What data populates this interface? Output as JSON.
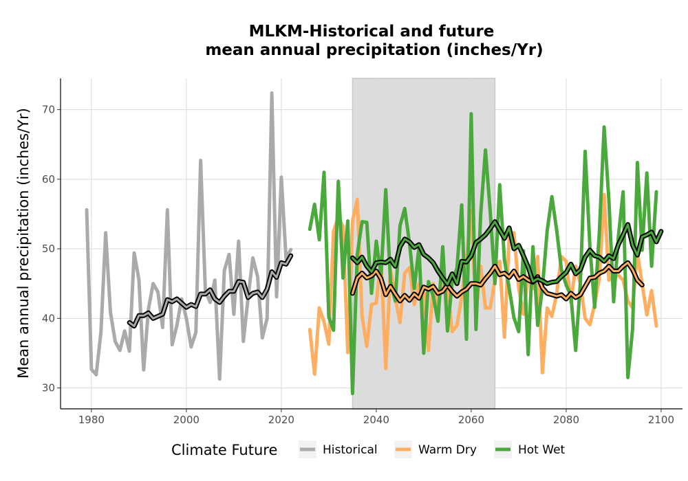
{
  "chart_data": {
    "type": "line",
    "title_lines": [
      "MLKM-Historical and future",
      "mean annual precipitation (inches/Yr)"
    ],
    "ylabel": "Mean annual precipitation (inches/Yr)",
    "xlim": [
      1973.5,
      2104.5
    ],
    "ylim": [
      27,
      74.5
    ],
    "x_ticks": [
      1980,
      2000,
      2020,
      2040,
      2060,
      2080,
      2100
    ],
    "y_ticks": [
      30,
      40,
      50,
      60,
      70
    ],
    "grid": true,
    "shaded_period": [
      2035,
      2065
    ],
    "legend": {
      "title": "Climate Future",
      "placement": "bottom",
      "items": [
        {
          "label": "Historical",
          "color": "#aaaaaa"
        },
        {
          "label": "Warm Dry",
          "color": "#fdae61"
        },
        {
          "label": "Hot Wet",
          "color": "#4aa83c"
        }
      ]
    },
    "series": [
      {
        "name": "Historical",
        "color": "#aaaaaa",
        "x_start": 1979,
        "values": [
          55.6,
          32.7,
          31.9,
          38.0,
          52.3,
          40.9,
          36.7,
          35.4,
          38.2,
          35.3,
          49.4,
          45.6,
          32.6,
          41.3,
          45.0,
          43.8,
          38.7,
          55.6,
          36.2,
          39.0,
          42.8,
          40.0,
          35.9,
          38.0,
          62.7,
          44.0,
          42.3,
          45.5,
          31.3,
          46.9,
          49.2,
          40.6,
          51.1,
          36.7,
          43.0,
          48.7,
          46.0,
          37.2,
          40.0,
          72.4,
          43.1,
          60.3,
          48.6,
          49.9
        ]
      },
      {
        "name": "",
        "color": "#000000",
        "smoothed": true,
        "x_start": 1988,
        "values": [
          39.4,
          38.9,
          40.4,
          40.4,
          40.8,
          40.0,
          40.3,
          40.6,
          42.7,
          42.4,
          42.8,
          42.2,
          41.6,
          42.0,
          41.7,
          43.5,
          43.5,
          44.1,
          42.8,
          42.3,
          43.2,
          43.9,
          43.9,
          45.3,
          45.2,
          43.0,
          43.6,
          43.8,
          43.0,
          44.2,
          46.7,
          45.9,
          48.0,
          47.8,
          49.0
        ]
      },
      {
        "name": "Warm Dry",
        "color": "#fdae61",
        "x_start": 2026,
        "values": [
          38.4,
          32.0,
          41.5,
          39.5,
          36.3,
          52.5,
          54.6,
          53.2,
          35.1,
          54.0,
          57.1,
          40.4,
          36.0,
          42.0,
          42.2,
          48.6,
          32.8,
          47.0,
          43.0,
          39.4,
          46.5,
          47.3,
          42.0,
          45.0,
          44.2,
          35.4,
          45.0,
          40.8,
          46.1,
          44.1,
          38.1,
          39.0,
          43.1,
          48.5,
          55.5,
          41.0,
          47.5,
          41.5,
          41.5,
          45.5,
          48.2,
          37.3,
          51.7,
          52.3,
          44.3,
          40.6,
          46.0,
          44.3,
          48.9,
          32.2,
          41.5,
          40.3,
          43.5,
          48.9,
          48.2,
          42.3,
          47.5,
          45.0,
          40.0,
          39.1,
          42.0,
          45.8,
          57.8,
          45.5,
          46.0,
          46.2,
          45.5,
          42.5,
          41.5,
          49.5,
          45.0,
          40.5,
          44.0,
          38.9
        ]
      },
      {
        "name": "Hot Wet",
        "color": "#4aa83c",
        "x_start": 2026,
        "values": [
          52.8,
          56.4,
          51.3,
          61.0,
          40.2,
          38.3,
          59.7,
          45.8,
          54.0,
          29.2,
          49.2,
          53.9,
          53.8,
          43.6,
          51.1,
          46.2,
          58.5,
          45.3,
          42.5,
          53.3,
          55.8,
          50.8,
          44.3,
          50.2,
          35.0,
          45.3,
          43.2,
          39.6,
          50.3,
          38.2,
          45.3,
          47.2,
          56.3,
          37.0,
          69.4,
          38.4,
          55.0,
          64.2,
          55.4,
          45.0,
          59.2,
          48.4,
          44.3,
          40.1,
          38.1,
          49.7,
          34.8,
          50.3,
          39.0,
          44.4,
          52.6,
          57.5,
          52.7,
          47.0,
          44.8,
          43.3,
          35.4,
          45.2,
          64.0,
          50.3,
          41.6,
          52.5,
          67.5,
          57.0,
          42.4,
          51.8,
          58.2,
          31.5,
          38.5,
          62.4,
          49.8,
          60.9,
          47.5,
          58.2
        ]
      },
      {
        "name": "",
        "color": "#000000",
        "smoothed": true,
        "x_start": 2035,
        "values": [
          43.6,
          45.8,
          46.5,
          45.8,
          46.1,
          46.8,
          45.7,
          43.4,
          44.6,
          43.5,
          42.5,
          43.3,
          42.6,
          43.5,
          42.9,
          44.5,
          44.2,
          44.6,
          43.6,
          43.9,
          44.8,
          43.9,
          43.2,
          43.8,
          44.2,
          45.0,
          45.0,
          44.8,
          45.7,
          46.5,
          47.5,
          46.3,
          46.5,
          45.9,
          46.8,
          45.6,
          46.0,
          45.5,
          45.2,
          46.0,
          44.4,
          43.6,
          43.4,
          43.2,
          43.4,
          42.8,
          43.6,
          43.0,
          43.4,
          44.6,
          45.8,
          45.9,
          46.5,
          46.8,
          47.5,
          46.8,
          46.8,
          47.5,
          48.0,
          47.0,
          45.5,
          44.8
        ]
      },
      {
        "name": "",
        "color": "#000000",
        "smoothed": true,
        "x_start": 2035,
        "values": [
          48.7,
          48.0,
          48.8,
          47.5,
          46.7,
          48.0,
          48.1,
          48.0,
          48.5,
          47.5,
          50.3,
          51.4,
          51.0,
          50.2,
          50.6,
          49.2,
          48.7,
          48.0,
          46.8,
          45.8,
          44.9,
          46.4,
          45.0,
          48.2,
          48.1,
          49.0,
          50.9,
          51.4,
          52.0,
          52.9,
          53.9,
          52.7,
          51.5,
          53.0,
          50.0,
          50.5,
          49.0,
          47.4,
          45.3,
          45.7,
          45.4,
          45.0,
          45.2,
          45.3,
          46.0,
          46.6,
          47.8,
          46.4,
          47.0,
          48.8,
          49.8,
          49.0,
          48.8,
          48.2,
          49.0,
          48.6,
          50.6,
          52.0,
          53.5,
          50.5,
          49.1,
          51.7,
          52.0,
          52.4,
          51.0,
          52.5
        ]
      }
    ]
  }
}
